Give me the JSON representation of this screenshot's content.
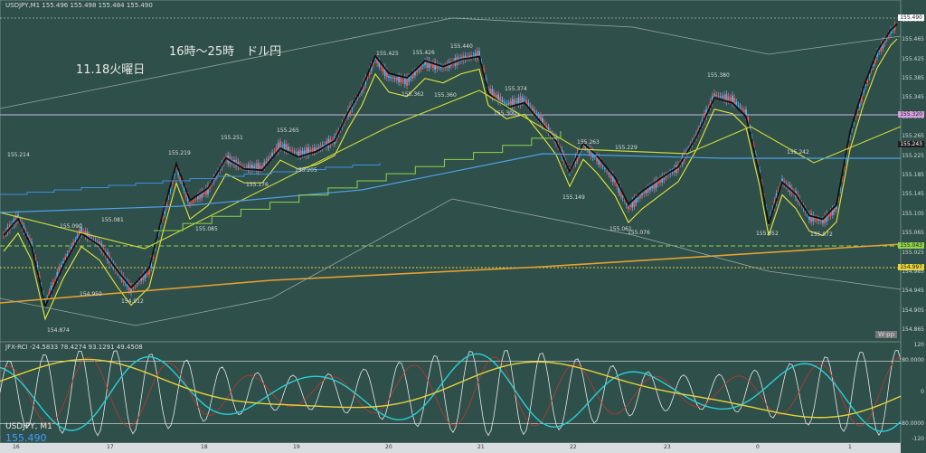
{
  "header": {
    "symbol_info": "USDJPY,M1  155.496 155.498 155.484 155.490",
    "title": "16時～25時　ドル円",
    "date": "11.18火曜日",
    "osc_info": "JFX-RCI -24.5833 78.4274 93.1291 49.4508",
    "bottom_symbol": "USDJPY, M1",
    "bottom_price": "155.490",
    "wpp_label": "W-pp"
  },
  "chart_data": {
    "type": "candlestick",
    "title": "16時～25時　ドル円",
    "price_labels": [
      {
        "text": "155.214",
        "price": 155.214
      },
      {
        "text": "155.090",
        "price": 155.09
      },
      {
        "text": "155.081",
        "price": 155.081
      },
      {
        "text": "154.950",
        "price": 154.95
      },
      {
        "text": "154.912",
        "price": 154.912
      },
      {
        "text": "154.874",
        "price": 154.874
      },
      {
        "text": "155.219",
        "price": 155.219
      },
      {
        "text": "155.085",
        "price": 155.085
      },
      {
        "text": "155.251",
        "price": 155.251
      },
      {
        "text": "155.176",
        "price": 155.176
      },
      {
        "text": "155.265",
        "price": 155.265
      },
      {
        "text": "155.205",
        "price": 155.205
      },
      {
        "text": "155.425",
        "price": 155.425
      },
      {
        "text": "155.362",
        "price": 155.362
      },
      {
        "text": "155.426",
        "price": 155.426
      },
      {
        "text": "155.360",
        "price": 155.36
      },
      {
        "text": "155.440",
        "price": 155.44
      },
      {
        "text": "155.374",
        "price": 155.374
      },
      {
        "text": "155.300",
        "price": 155.3
      },
      {
        "text": "155.263",
        "price": 155.263
      },
      {
        "text": "155.229",
        "price": 155.229
      },
      {
        "text": "155.149",
        "price": 155.149
      },
      {
        "text": "155.061",
        "price": 155.061
      },
      {
        "text": "155.076",
        "price": 155.076
      },
      {
        "text": "155.380",
        "price": 155.38
      },
      {
        "text": "155.242",
        "price": 155.242
      },
      {
        "text": "155.052",
        "price": 155.052
      },
      {
        "text": "155.072",
        "price": 155.072
      }
    ],
    "y_ticks": [
      "155.505",
      "155.465",
      "155.425",
      "155.385",
      "155.345",
      "155.305",
      "155.265",
      "155.225",
      "155.185",
      "155.145",
      "155.105",
      "155.065",
      "155.025",
      "154.985",
      "154.945",
      "154.905",
      "154.865"
    ],
    "price_tags": [
      {
        "text": "155.490",
        "color": "#ffffff"
      },
      {
        "text": "155.320",
        "color": "#d6a0e0"
      },
      {
        "text": "155.243",
        "color": "#1e1e1e"
      },
      {
        "text": "155.043",
        "color": "#8fd44a"
      },
      {
        "text": "154.997",
        "color": "#e6d23a"
      }
    ],
    "x_ticks": [
      "16",
      "17",
      "18",
      "19",
      "20",
      "21",
      "22",
      "23",
      "0",
      "1"
    ],
    "osc_ticks": [
      "120",
      "80.0000",
      "0",
      "-80.0000",
      "-120"
    ],
    "y_range": [
      154.845,
      155.525
    ]
  }
}
